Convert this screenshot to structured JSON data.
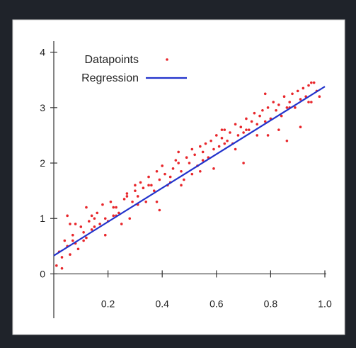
{
  "chart_data": {
    "type": "scatter",
    "title": "",
    "xlabel": "",
    "ylabel": "",
    "xlim": [
      0,
      1.0
    ],
    "ylim": [
      -0.8,
      4.2
    ],
    "grid": false,
    "legend": "top-left",
    "x_ticks": [
      {
        "value": 0.2,
        "label": "0.2"
      },
      {
        "value": 0.4,
        "label": "0.4"
      },
      {
        "value": 0.6,
        "label": "0.6"
      },
      {
        "value": 0.8,
        "label": "0.8"
      },
      {
        "value": 1.0,
        "label": "1.0"
      }
    ],
    "y_ticks": [
      {
        "value": 0,
        "label": "0"
      },
      {
        "value": 1,
        "label": "1"
      },
      {
        "value": 2,
        "label": "2"
      },
      {
        "value": 3,
        "label": "3"
      },
      {
        "value": 4,
        "label": "4"
      }
    ],
    "series": [
      {
        "name": "Datapoints",
        "color": "#e8262b",
        "x": [
          0.01,
          0.02,
          0.03,
          0.04,
          0.05,
          0.05,
          0.06,
          0.07,
          0.08,
          0.08,
          0.09,
          0.1,
          0.11,
          0.12,
          0.12,
          0.13,
          0.14,
          0.15,
          0.16,
          0.17,
          0.18,
          0.19,
          0.2,
          0.21,
          0.22,
          0.23,
          0.24,
          0.25,
          0.26,
          0.27,
          0.28,
          0.29,
          0.3,
          0.31,
          0.32,
          0.33,
          0.34,
          0.35,
          0.36,
          0.37,
          0.38,
          0.39,
          0.4,
          0.41,
          0.42,
          0.43,
          0.44,
          0.45,
          0.46,
          0.47,
          0.48,
          0.49,
          0.5,
          0.51,
          0.52,
          0.53,
          0.54,
          0.55,
          0.56,
          0.57,
          0.58,
          0.59,
          0.6,
          0.61,
          0.62,
          0.63,
          0.64,
          0.65,
          0.66,
          0.67,
          0.68,
          0.69,
          0.7,
          0.71,
          0.72,
          0.73,
          0.74,
          0.75,
          0.76,
          0.77,
          0.78,
          0.79,
          0.8,
          0.81,
          0.82,
          0.83,
          0.84,
          0.85,
          0.86,
          0.87,
          0.88,
          0.89,
          0.9,
          0.91,
          0.92,
          0.93,
          0.94,
          0.95,
          0.96,
          0.97,
          0.98,
          0.03,
          0.07,
          0.11,
          0.15,
          0.19,
          0.23,
          0.27,
          0.31,
          0.35,
          0.39,
          0.43,
          0.47,
          0.51,
          0.55,
          0.59,
          0.63,
          0.67,
          0.71,
          0.75,
          0.79,
          0.83,
          0.87,
          0.91,
          0.95,
          0.06,
          0.14,
          0.22,
          0.3,
          0.38,
          0.46,
          0.54,
          0.62,
          0.7,
          0.78,
          0.86,
          0.94
        ],
        "y": [
          0.15,
          0.4,
          0.1,
          0.6,
          0.5,
          1.05,
          0.35,
          0.7,
          0.55,
          0.9,
          0.45,
          0.85,
          0.75,
          0.65,
          1.2,
          0.95,
          0.8,
          1.0,
          1.1,
          0.9,
          1.25,
          0.7,
          0.95,
          1.3,
          1.05,
          1.2,
          1.1,
          0.9,
          1.35,
          1.45,
          1.0,
          1.3,
          1.5,
          1.4,
          1.65,
          1.55,
          1.3,
          1.75,
          1.6,
          1.5,
          1.85,
          1.7,
          1.95,
          1.8,
          1.6,
          1.75,
          1.9,
          2.05,
          2.0,
          1.85,
          1.7,
          2.1,
          2.0,
          2.25,
          2.15,
          1.95,
          2.3,
          2.2,
          2.35,
          2.1,
          2.4,
          2.25,
          2.5,
          2.3,
          2.45,
          2.6,
          2.4,
          2.55,
          2.35,
          2.7,
          2.5,
          2.65,
          2.55,
          2.8,
          2.6,
          2.75,
          2.9,
          2.7,
          2.85,
          2.95,
          2.75,
          3.0,
          2.8,
          3.1,
          2.95,
          3.05,
          2.85,
          3.2,
          3.0,
          3.1,
          3.25,
          3.0,
          3.3,
          3.15,
          3.35,
          3.2,
          3.4,
          3.1,
          3.45,
          3.3,
          3.2,
          0.3,
          0.6,
          0.6,
          0.85,
          1.0,
          1.05,
          1.4,
          1.25,
          1.6,
          1.15,
          1.65,
          1.6,
          1.8,
          2.05,
          1.9,
          2.35,
          2.25,
          2.6,
          2.5,
          2.5,
          2.6,
          3.0,
          2.65,
          3.45,
          0.9,
          1.05,
          1.2,
          1.6,
          1.3,
          2.2,
          1.85,
          2.6,
          2.0,
          3.25,
          2.4,
          3.1
        ]
      },
      {
        "name": "Regression",
        "color": "#2233cc",
        "x": [
          0.0,
          1.0
        ],
        "y": [
          0.33,
          3.38
        ]
      }
    ]
  }
}
